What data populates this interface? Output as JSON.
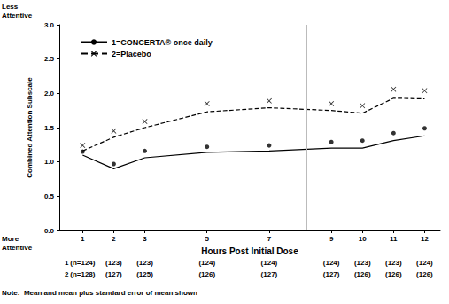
{
  "chart_data": {
    "type": "line",
    "x_label": "Hours Post Initial Dose",
    "y_label": "Combined Attention Subscale",
    "top_label": "Less Attentive",
    "bottom_label": "More Attentive",
    "note": "Note:  Mean and mean plus standard error of mean shown",
    "x": [
      1,
      2,
      3,
      5,
      7,
      9,
      10,
      11,
      12
    ],
    "xlim": [
      0.25,
      12.5
    ],
    "xticks": [
      1,
      2,
      3,
      5,
      7,
      9,
      10,
      11,
      12
    ],
    "ylim": [
      0,
      3
    ],
    "yticks": [
      {
        "value": 0,
        "label": "0.0"
      },
      0.5,
      {
        "value": 1,
        "label": "1.0"
      },
      1.5,
      {
        "value": 2,
        "label": "2.0"
      },
      2.5,
      {
        "value": 3,
        "label": "3.0"
      }
    ],
    "grid": false,
    "legend": "upper left",
    "dividers": [
      4.2,
      8.2
    ],
    "series": [
      {
        "name": "1=CONCERTA® once daily",
        "color": "#000000",
        "marker": "circle",
        "line_style": "solid",
        "values": [
          1.1,
          0.9,
          1.06,
          1.14,
          1.16,
          1.2,
          1.2,
          1.31,
          1.38
        ],
        "upper_values": [
          1.15,
          0.97,
          1.16,
          1.22,
          1.24,
          1.29,
          1.31,
          1.42,
          1.49
        ]
      },
      {
        "name": "2=Placebo",
        "color": "#000000",
        "marker": "x",
        "line_style": "dashed",
        "values": [
          1.16,
          1.36,
          1.5,
          1.73,
          1.79,
          1.75,
          1.71,
          1.93,
          1.92
        ],
        "upper_values": [
          1.24,
          1.45,
          1.59,
          1.85,
          1.89,
          1.85,
          1.82,
          2.06,
          2.04
        ]
      }
    ],
    "counts": [
      {
        "label": "1",
        "cells": [
          "(n=124)",
          "(123)",
          "(123)",
          "(124)",
          "(124)",
          "(124)",
          "(123)",
          "(123)",
          "(124)"
        ]
      },
      {
        "label": "2",
        "cells": [
          "(n=128)",
          "(127)",
          "(125)",
          "(126)",
          "(127)",
          "(127)",
          "(126)",
          "(126)",
          "(126)"
        ]
      }
    ]
  }
}
